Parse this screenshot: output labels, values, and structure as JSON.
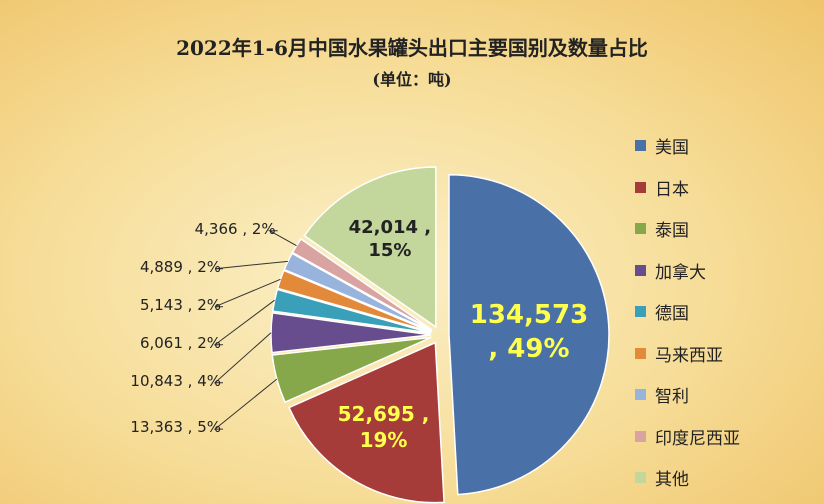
{
  "chart_data": {
    "type": "pie",
    "title": "2022年1-6月中国水果罐头出口主要国别及数量占比",
    "subtitle": "(单位：吨)",
    "categories": [
      "美国",
      "日本",
      "泰国",
      "加拿大",
      "德国",
      "马来西亚",
      "智利",
      "印度尼西亚",
      "其他"
    ],
    "values": [
      134573,
      52695,
      13363,
      10843,
      6061,
      5143,
      4889,
      4366,
      42014
    ],
    "value_labels": [
      "134,573 , 49%",
      "52,695 , 19%",
      "13,363 , 5%",
      "10,843 , 4%",
      "6,061 , 2%",
      "5,143 , 2%",
      "4,889 , 2%",
      "4,366 , 2%",
      "42,014 , 15%"
    ],
    "colors": [
      "#4a70a8",
      "#a63c3a",
      "#86a84a",
      "#684d8e",
      "#3a9fb8",
      "#e38a3a",
      "#98b3dc",
      "#d9a3a2",
      "#c3d79c"
    ],
    "legend": "right"
  }
}
